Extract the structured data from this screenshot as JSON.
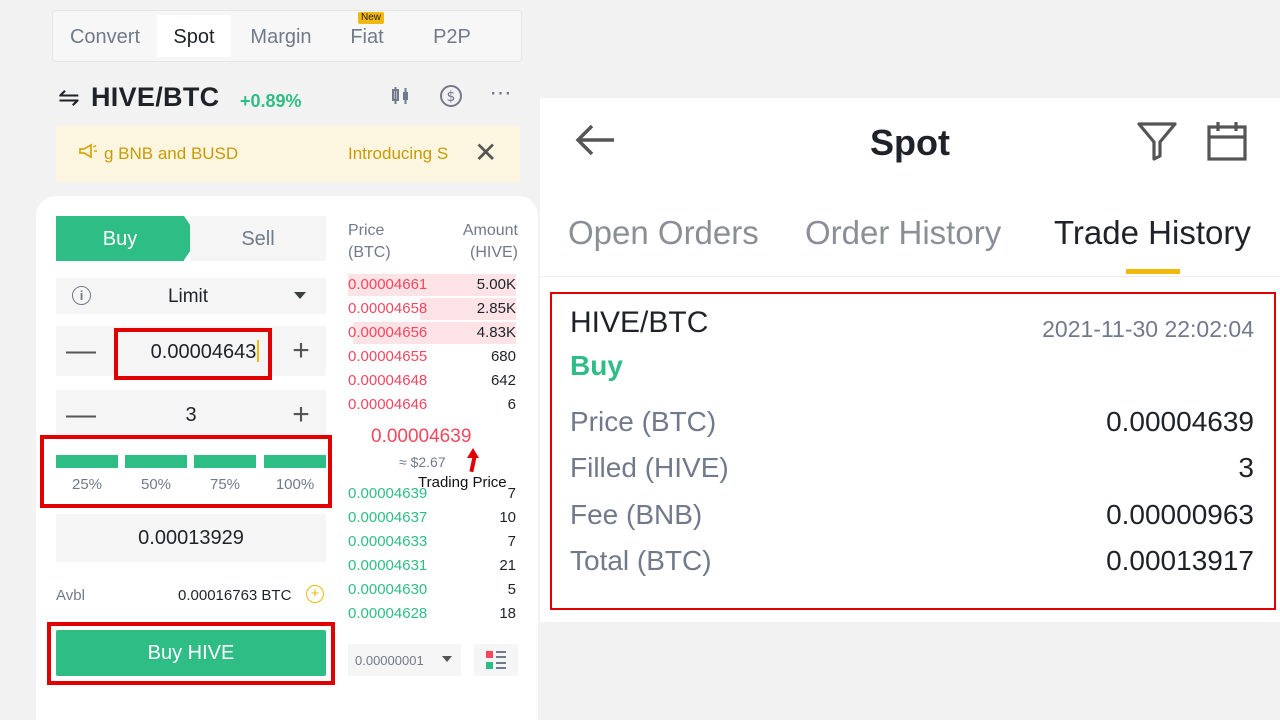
{
  "top_tabs": [
    {
      "label": "Convert",
      "active": false
    },
    {
      "label": "Spot",
      "active": true
    },
    {
      "label": "Margin",
      "active": false
    },
    {
      "label": "Fiat",
      "active": false,
      "badge": "New"
    },
    {
      "label": "P2P",
      "active": false
    }
  ],
  "pair": {
    "name": "HIVE/BTC",
    "change": "+0.89%"
  },
  "announcement": {
    "text_left": "g BNB and BUSD",
    "text_right": "Introducing S"
  },
  "order_form": {
    "buy_label": "Buy",
    "sell_label": "Sell",
    "order_type": "Limit",
    "price": "0.00004643",
    "amount": "3",
    "percent_options": [
      "25%",
      "50%",
      "75%",
      "100%"
    ],
    "total": "0.00013929",
    "avbl_label": "Avbl",
    "avbl_value": "0.00016763 BTC",
    "submit_label": "Buy HIVE"
  },
  "order_book": {
    "price_header": "Price",
    "price_unit": "(BTC)",
    "amount_header": "Amount",
    "amount_unit": "(HIVE)",
    "asks": [
      {
        "price": "0.00004661",
        "amount": "5.00K",
        "depth": 1.0
      },
      {
        "price": "0.00004658",
        "amount": "2.85K",
        "depth": 0.57
      },
      {
        "price": "0.00004656",
        "amount": "4.83K",
        "depth": 0.97
      },
      {
        "price": "0.00004655",
        "amount": "680",
        "depth": 0
      },
      {
        "price": "0.00004648",
        "amount": "642",
        "depth": 0
      },
      {
        "price": "0.00004646",
        "amount": "6",
        "depth": 0
      }
    ],
    "last_price": "0.00004639",
    "last_price_usd": "≈ $2.67",
    "annotation": "Trading Price",
    "bids": [
      {
        "price": "0.00004639",
        "amount": "7"
      },
      {
        "price": "0.00004637",
        "amount": "10"
      },
      {
        "price": "0.00004633",
        "amount": "7"
      },
      {
        "price": "0.00004631",
        "amount": "21"
      },
      {
        "price": "0.00004630",
        "amount": "5"
      },
      {
        "price": "0.00004628",
        "amount": "18"
      }
    ],
    "precision": "0.00000001"
  },
  "history": {
    "title": "Spot",
    "tabs": [
      {
        "label": "Open Orders",
        "active": false
      },
      {
        "label": "Order History",
        "active": false
      },
      {
        "label": "Trade History",
        "active": true
      }
    ],
    "trade": {
      "pair": "HIVE/BTC",
      "datetime": "2021-11-30 22:02:04",
      "side": "Buy",
      "rows": [
        {
          "label": "Price (BTC)",
          "value": "0.00004639"
        },
        {
          "label": "Filled (HIVE)",
          "value": "3"
        },
        {
          "label": "Fee (BNB)",
          "value": "0.00000963"
        },
        {
          "label": "Total (BTC)",
          "value": "0.00013917"
        }
      ]
    }
  },
  "icons": {
    "pair_swap": "swap-arrows-icon",
    "chart": "candlestick-icon",
    "currency": "dollar-circle-icon",
    "more": "more-dots-icon",
    "announcement": "megaphone-icon",
    "close": "close-icon",
    "back": "back-arrow-icon",
    "filter": "filter-icon",
    "calendar": "calendar-icon"
  },
  "colors": {
    "green": "#2ebd85",
    "red": "#f6465d",
    "accent": "#f0b90b",
    "highlight": "#e00000"
  }
}
